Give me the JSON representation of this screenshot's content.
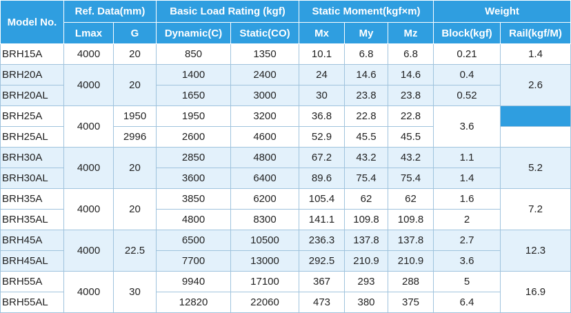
{
  "header": {
    "model_no": "Model No.",
    "ref_data": "Ref. Data(mm)",
    "load_rating": "Basic Load Rating (kgf)",
    "static_moment": "Static Moment(kgf×m)",
    "weight": "Weight",
    "lmax": "Lmax",
    "g": "G",
    "dynamic": "Dynamic(C)",
    "static": "Static(CO)",
    "mx": "Mx",
    "my": "My",
    "mz": "Mz",
    "block": "Block(kgf)",
    "rail": "Rail(kgf/M)"
  },
  "groups": [
    {
      "lmax": "4000",
      "g": "20",
      "rail": "1.4",
      "rows": [
        {
          "model": "BRH15A",
          "dynamic": "850",
          "static": "1350",
          "mx": "10.1",
          "my": "6.8",
          "mz": "6.8",
          "block": "0.21"
        }
      ]
    },
    {
      "lmax": "4000",
      "g": "20",
      "rail": "2.6",
      "rows": [
        {
          "model": "BRH20A",
          "dynamic": "1400",
          "static": "2400",
          "mx": "24",
          "my": "14.6",
          "mz": "14.6",
          "block": "0.4"
        },
        {
          "model": "BRH20AL",
          "dynamic": "1650",
          "static": "3000",
          "mx": "30",
          "my": "23.8",
          "mz": "23.8",
          "block": "0.52"
        }
      ]
    },
    {
      "lmax": "4000",
      "g_a": "1950",
      "g_b": "2996",
      "block": "3.6",
      "rows": [
        {
          "model": "BRH25A",
          "dynamic": "1950",
          "static": "3200",
          "mx": "36.8",
          "my": "22.8",
          "mz": "22.8"
        },
        {
          "model": "BRH25AL",
          "dynamic": "2600",
          "static": "4600",
          "mx": "52.9",
          "my": "45.5",
          "mz": "45.5"
        }
      ]
    },
    {
      "lmax": "4000",
      "g": "20",
      "rail": "5.2",
      "rows": [
        {
          "model": "BRH30A",
          "dynamic": "2850",
          "static": "4800",
          "mx": "67.2",
          "my": "43.2",
          "mz": "43.2",
          "block": "1.1"
        },
        {
          "model": "BRH30AL",
          "dynamic": "3600",
          "static": "6400",
          "mx": "89.6",
          "my": "75.4",
          "mz": "75.4",
          "block": "1.4"
        }
      ]
    },
    {
      "lmax": "4000",
      "g": "20",
      "rail": "7.2",
      "rows": [
        {
          "model": "BRH35A",
          "dynamic": "3850",
          "static": "6200",
          "mx": "105.4",
          "my": "62",
          "mz": "62",
          "block": "1.6"
        },
        {
          "model": "BRH35AL",
          "dynamic": "4800",
          "static": "8300",
          "mx": "141.1",
          "my": "109.8",
          "mz": "109.8",
          "block": "2"
        }
      ]
    },
    {
      "lmax": "4000",
      "g": "22.5",
      "rail": "12.3",
      "rows": [
        {
          "model": "BRH45A",
          "dynamic": "6500",
          "static": "10500",
          "mx": "236.3",
          "my": "137.8",
          "mz": "137.8",
          "block": "2.7"
        },
        {
          "model": "BRH45AL",
          "dynamic": "7700",
          "static": "13000",
          "mx": "292.5",
          "my": "210.9",
          "mz": "210.9",
          "block": "3.6"
        }
      ]
    },
    {
      "lmax": "4000",
      "g": "30",
      "rail": "16.9",
      "rows": [
        {
          "model": "BRH55A",
          "dynamic": "9940",
          "static": "17100",
          "mx": "367",
          "my": "293",
          "mz": "288",
          "block": "5"
        },
        {
          "model": "BRH55AL",
          "dynamic": "12820",
          "static": "22060",
          "mx": "473",
          "my": "380",
          "mz": "375",
          "block": "6.4"
        }
      ]
    }
  ],
  "colors": {
    "header_bg": "#2f9ee0",
    "alt_row_bg": "#e3f1fb",
    "border": "#9fc3dd"
  }
}
